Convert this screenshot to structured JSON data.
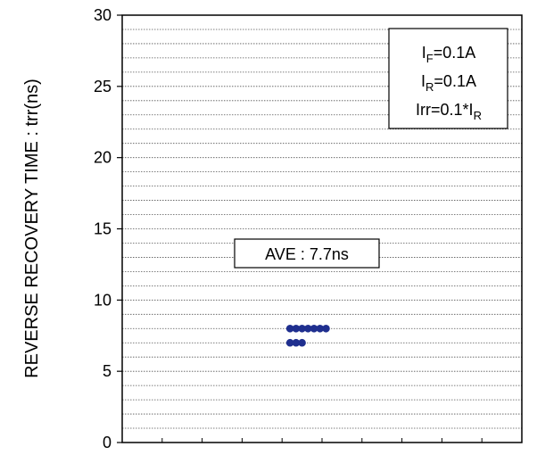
{
  "chart_data": {
    "type": "scatter",
    "ylabel": "REVERSE RECOVERY TIME : trr(ns)",
    "xlabel": "",
    "ylim": [
      0,
      30
    ],
    "yticks": [
      0,
      5,
      10,
      15,
      20,
      25,
      30
    ],
    "y_minor_step": 1,
    "x_divisions": 10,
    "grid": "horizontal dotted lines at every 1 ns",
    "marker_color": "#1f2f8f",
    "series": [
      {
        "points": [
          {
            "x": 4.2,
            "y": 8
          },
          {
            "x": 4.35,
            "y": 8
          },
          {
            "x": 4.5,
            "y": 8
          },
          {
            "x": 4.65,
            "y": 8
          },
          {
            "x": 4.8,
            "y": 8
          },
          {
            "x": 4.95,
            "y": 8
          },
          {
            "x": 5.1,
            "y": 8
          },
          {
            "x": 4.2,
            "y": 7
          },
          {
            "x": 4.35,
            "y": 7
          },
          {
            "x": 4.5,
            "y": 7
          }
        ]
      }
    ],
    "annotations": {
      "average": "AVE : 7.7ns",
      "conditions": [
        {
          "main": "I",
          "sub": "F",
          "rest": "=0.1A"
        },
        {
          "main": "I",
          "sub": "R",
          "rest": "=0.1A"
        },
        {
          "main": "Irr=0.1*I",
          "sub": "R",
          "rest": ""
        }
      ]
    }
  }
}
